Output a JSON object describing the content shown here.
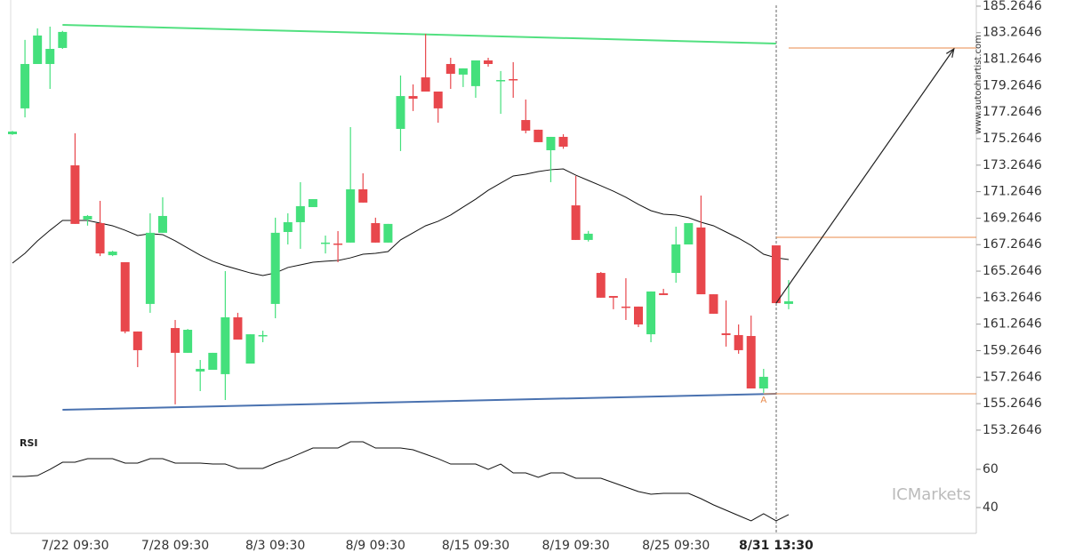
{
  "chart_data": [
    {
      "type": "candlestick",
      "categories": [
        null,
        null,
        null,
        null,
        null,
        "7/22 09:30",
        null,
        null,
        null,
        null,
        null,
        null,
        null,
        "7/28 09:30",
        null,
        null,
        null,
        null,
        null,
        null,
        null,
        "8/3 09:30",
        null,
        null,
        null,
        null,
        null,
        null,
        null,
        "8/9 09:30",
        null,
        null,
        null,
        null,
        null,
        null,
        null,
        "8/15 09:30",
        null,
        null,
        null,
        null,
        null,
        null,
        null,
        "8/19 09:30",
        null,
        null,
        null,
        null,
        null,
        null,
        null,
        "8/25 09:30",
        null,
        null,
        null,
        null,
        null,
        null,
        null,
        "8/31 13:30",
        null
      ],
      "open": [
        175.6,
        177.55,
        180.9,
        180.9,
        182.11,
        173.25,
        169.16,
        168.89,
        166.47,
        165.94,
        160.71,
        162.79,
        168.16,
        160.97,
        159.1,
        157.69,
        157.82,
        157.49,
        161.78,
        158.29,
        160.37,
        162.79,
        168.22,
        168.96,
        170.1,
        167.35,
        167.35,
        167.42,
        171.44,
        168.89,
        167.42,
        176,
        178.48,
        179.89,
        178.82,
        180.9,
        180.1,
        179.23,
        181.17,
        179.63,
        179.76,
        176.67,
        175.94,
        174.39,
        175.4,
        170.23,
        167.62,
        165.13,
        163.39,
        162.59,
        162.59,
        160.5,
        163.59,
        165.13,
        167.28,
        168.56,
        163.52,
        160.57,
        160.44,
        160.37,
        156.41,
        167.21,
        162.79
      ],
      "high": [
        175.85,
        182.72,
        183.59,
        183.72,
        183.4,
        175.67,
        169.5,
        170.57,
        166.8,
        165.94,
        160.71,
        169.63,
        170.84,
        161.58,
        160.9,
        158.56,
        159.1,
        165.27,
        162.12,
        160.5,
        160.77,
        169.3,
        169.63,
        171.98,
        170.7,
        167.95,
        168.29,
        176.14,
        172.65,
        169.3,
        168.83,
        180.03,
        179.36,
        183.18,
        178.82,
        181.37,
        180.57,
        181.17,
        181.37,
        180.37,
        181.04,
        178.22,
        175.94,
        175.4,
        175.6,
        172.45,
        168.3,
        165.2,
        163.39,
        164.73,
        162.59,
        163.73,
        163.93,
        168.62,
        168.89,
        170.97,
        163.52,
        163.05,
        161.24,
        161.91,
        157.89,
        167.21,
        164.59
      ],
      "low": [
        175.55,
        176.87,
        180.9,
        179.02,
        182.04,
        168.83,
        168.7,
        166.4,
        166.4,
        160.57,
        158.02,
        162.12,
        168.16,
        155.21,
        159.1,
        156.21,
        157.82,
        155.54,
        160.1,
        158.29,
        159.9,
        161.71,
        167.28,
        166.95,
        170.1,
        166.6,
        165.94,
        167.42,
        170.44,
        167.42,
        167.42,
        174.33,
        177.35,
        178.82,
        176.47,
        179.02,
        179.16,
        178.35,
        180.7,
        177.14,
        178.35,
        175.67,
        175,
        171.98,
        174.5,
        167.62,
        167.5,
        163.26,
        162.39,
        161.58,
        161.04,
        159.9,
        163.46,
        164.39,
        167.28,
        163.52,
        162.05,
        159.57,
        159.03,
        156.41,
        156.08,
        162.85,
        162.39
      ],
      "close": [
        175.8,
        180.9,
        183.05,
        182.04,
        183.32,
        168.83,
        169.43,
        166.6,
        166.74,
        160.71,
        159.3,
        168.16,
        169.43,
        159.1,
        160.84,
        157.89,
        159.1,
        161.78,
        160.1,
        160.5,
        160.44,
        168.16,
        168.96,
        170.17,
        170.7,
        167.42,
        167.28,
        171.44,
        170.44,
        167.42,
        168.83,
        178.48,
        178.28,
        178.82,
        177.55,
        180.16,
        180.57,
        181.17,
        180.9,
        179.69,
        179.69,
        175.87,
        175,
        175.4,
        174.66,
        167.62,
        168.09,
        163.26,
        163.26,
        162.52,
        161.24,
        163.73,
        163.46,
        167.28,
        168.89,
        163.52,
        162.05,
        160.44,
        159.3,
        156.41,
        157.29,
        162.85,
        162.99
      ],
      "up_color": "#44e07c",
      "down_color": "#e8474c",
      "ma": {
        "color": "#111111",
        "values": [
          165.87,
          166.61,
          167.55,
          168.35,
          169.09,
          169.09,
          169.09,
          168.89,
          168.69,
          168.35,
          167.95,
          168.09,
          168.02,
          167.55,
          167.01,
          166.47,
          166.01,
          165.67,
          165.4,
          165.13,
          164.93,
          165.13,
          165.54,
          165.74,
          165.94,
          166.01,
          166.07,
          166.27,
          166.54,
          166.61,
          166.74,
          167.62,
          168.16,
          168.69,
          169.03,
          169.5,
          170.1,
          170.7,
          171.37,
          171.91,
          172.45,
          172.58,
          172.78,
          172.92,
          172.98,
          172.51,
          172.11,
          171.71,
          171.3,
          170.84,
          170.3,
          169.83,
          169.56,
          169.5,
          169.3,
          168.96,
          168.69,
          168.22,
          167.75,
          167.21,
          166.54,
          166.27,
          166.14
        ]
      },
      "resistance": {
        "color": "#52e080",
        "x": [
          4,
          61
        ],
        "values": [
          183.85,
          182.44
        ]
      },
      "support": {
        "color": "#4a72b0",
        "x": [
          4,
          61
        ],
        "values": [
          154.8,
          156.01
        ]
      },
      "levels": {
        "color": "#e8894a",
        "x": [
          62,
          61,
          60
        ],
        "values": [
          182.11,
          167.82,
          156.01
        ]
      },
      "projection": {
        "color": "#222222",
        "x": [
          61,
          75.2
        ],
        "values": [
          162.85,
          182.04
        ]
      },
      "marker": {
        "label": "A",
        "x": 60,
        "value": 156.01
      },
      "watermark": "www.autochartist.com",
      "logo": "ICMarkets",
      "ylim": [
        152.99,
        185.73
      ],
      "yticks": [
        185.2646,
        183.2646,
        181.2646,
        179.2646,
        177.2646,
        175.2646,
        173.2646,
        171.2646,
        169.2646,
        167.2646,
        165.2646,
        163.2646,
        161.2646,
        159.2646,
        157.2646,
        155.2646,
        153.2646
      ]
    },
    {
      "type": "line",
      "title": "RSI",
      "color": "#111111",
      "values": [
        56.28,
        56.28,
        56.74,
        60.0,
        63.72,
        63.72,
        65.58,
        65.58,
        65.58,
        63.26,
        63.26,
        65.58,
        65.58,
        63.26,
        63.26,
        63.26,
        62.79,
        62.79,
        60.47,
        60.47,
        60.47,
        63.26,
        65.58,
        68.37,
        71.16,
        71.16,
        71.16,
        74.42,
        74.42,
        71.16,
        71.16,
        71.16,
        70.23,
        67.91,
        65.58,
        62.79,
        62.79,
        62.79,
        60.0,
        62.79,
        58.14,
        58.14,
        55.81,
        58.14,
        58.14,
        55.35,
        55.35,
        55.35,
        53.02,
        50.7,
        48.37,
        46.98,
        47.44,
        47.44,
        47.44,
        44.65,
        41.4,
        38.6,
        35.81,
        33.02,
        36.74,
        33.02,
        36.28
      ],
      "ylim": [
        26.5,
        77.7
      ],
      "yticks": [
        60,
        40
      ]
    }
  ]
}
